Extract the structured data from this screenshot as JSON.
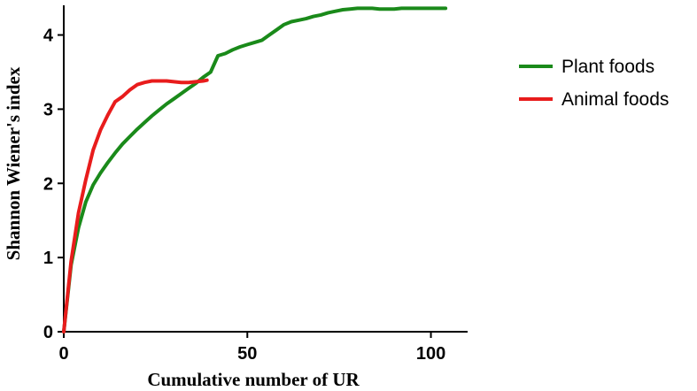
{
  "chart_data": {
    "type": "line",
    "xlabel": "Cumulative number of UR",
    "ylabel": "Shannon Wiener's index",
    "xlim": [
      0,
      110
    ],
    "ylim": [
      0,
      4.4
    ],
    "x_ticks": [
      0,
      50,
      100
    ],
    "y_ticks": [
      0,
      1,
      2,
      3,
      4
    ],
    "grid": false,
    "legend_position": "right",
    "series": [
      {
        "name": "Plant foods",
        "color": "#1a8a1a",
        "x": [
          0,
          2,
          4,
          6,
          8,
          10,
          12,
          14,
          16,
          18,
          20,
          22,
          24,
          26,
          28,
          30,
          32,
          34,
          36,
          38,
          40,
          42,
          44,
          46,
          48,
          50,
          52,
          54,
          56,
          58,
          60,
          62,
          64,
          66,
          68,
          70,
          72,
          74,
          76,
          78,
          80,
          82,
          84,
          86,
          88,
          90,
          92,
          94,
          96,
          98,
          100,
          102,
          104
        ],
        "y": [
          0,
          0.9,
          1.4,
          1.75,
          1.98,
          2.14,
          2.28,
          2.41,
          2.53,
          2.63,
          2.73,
          2.82,
          2.91,
          2.99,
          3.07,
          3.14,
          3.21,
          3.28,
          3.35,
          3.43,
          3.5,
          3.72,
          3.75,
          3.8,
          3.84,
          3.87,
          3.9,
          3.93,
          4.0,
          4.07,
          4.14,
          4.18,
          4.2,
          4.22,
          4.25,
          4.27,
          4.3,
          4.32,
          4.34,
          4.35,
          4.36,
          4.36,
          4.36,
          4.35,
          4.35,
          4.35,
          4.36,
          4.36,
          4.36,
          4.36,
          4.36,
          4.36,
          4.36
        ]
      },
      {
        "name": "Animal foods",
        "color": "#e81c1c",
        "x": [
          0,
          2,
          4,
          6,
          8,
          10,
          12,
          14,
          16,
          18,
          20,
          22,
          24,
          26,
          28,
          30,
          32,
          34,
          36,
          38,
          39
        ],
        "y": [
          0,
          0.95,
          1.6,
          2.05,
          2.45,
          2.72,
          2.92,
          3.1,
          3.17,
          3.26,
          3.33,
          3.36,
          3.38,
          3.38,
          3.38,
          3.37,
          3.36,
          3.36,
          3.37,
          3.38,
          3.39
        ]
      }
    ]
  }
}
